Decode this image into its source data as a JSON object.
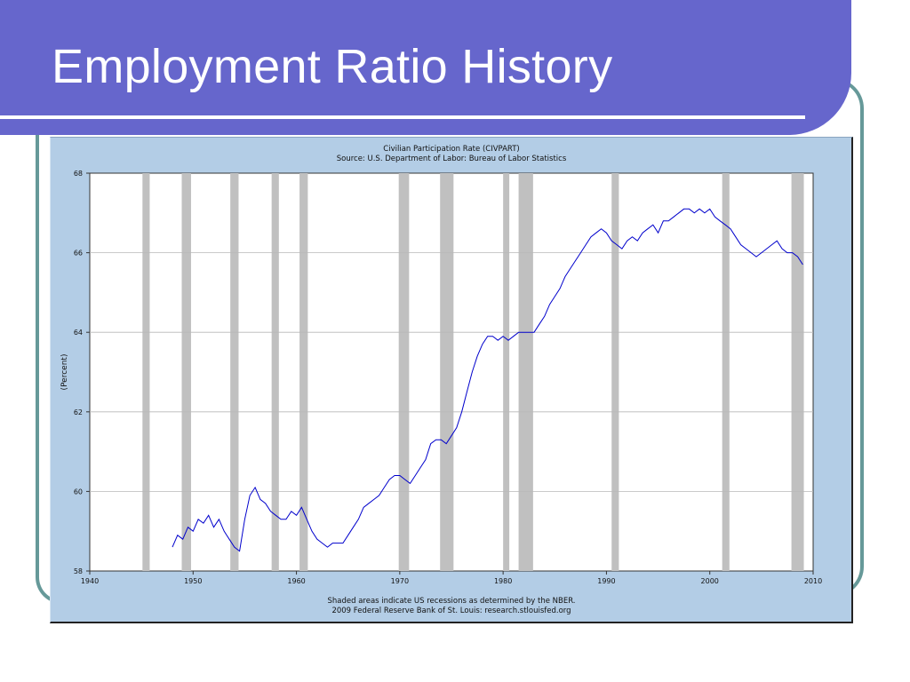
{
  "slide": {
    "title": "Employment Ratio History"
  },
  "chart_data": {
    "type": "line",
    "title": "Civilian Participation Rate (CIVPART)",
    "subtitle": "Source: U.S. Department of Labor: Bureau of Labor Statistics",
    "ylabel": "(Percent)",
    "xlabel": "",
    "xlim": [
      1940,
      2010
    ],
    "ylim": [
      58,
      68
    ],
    "x_ticks": [
      1940,
      1950,
      1960,
      1970,
      1980,
      1990,
      2000,
      2010
    ],
    "y_ticks": [
      58,
      60,
      62,
      64,
      66,
      68
    ],
    "grid": true,
    "line_color": "#0000cc",
    "recession_color": "#c0c0c0",
    "recessions": [
      [
        1945.1,
        1945.8
      ],
      [
        1948.9,
        1949.8
      ],
      [
        1953.6,
        1954.4
      ],
      [
        1957.6,
        1958.3
      ],
      [
        1960.3,
        1961.1
      ],
      [
        1969.9,
        1970.9
      ],
      [
        1973.9,
        1975.2
      ],
      [
        1980.0,
        1980.6
      ],
      [
        1981.5,
        1982.9
      ],
      [
        1990.5,
        1991.2
      ],
      [
        2001.2,
        2001.9
      ],
      [
        2007.9,
        2009.1
      ]
    ],
    "footnote": "Shaded areas indicate US recessions as determined by the NBER.",
    "credit": "2009 Federal Reserve Bank of St. Louis: research.stlouisfed.org",
    "series": [
      {
        "x": [
          1948.0,
          1948.5,
          1949.0,
          1949.5,
          1950.0,
          1950.5,
          1951.0,
          1951.5,
          1952.0,
          1952.5,
          1953.0,
          1953.5,
          1954.0,
          1954.5,
          1955.0,
          1955.5,
          1956.0,
          1956.5,
          1957.0,
          1957.5,
          1958.0,
          1958.5,
          1959.0,
          1959.5,
          1960.0,
          1960.5,
          1961.0,
          1961.5,
          1962.0,
          1962.5,
          1963.0,
          1963.5,
          1964.0,
          1964.5,
          1965.0,
          1965.5,
          1966.0,
          1966.5,
          1967.0,
          1967.5,
          1968.0,
          1968.5,
          1969.0,
          1969.5,
          1970.0,
          1970.5,
          1971.0,
          1971.5,
          1972.0,
          1972.5,
          1973.0,
          1973.5,
          1974.0,
          1974.5,
          1975.0,
          1975.5,
          1976.0,
          1976.5,
          1977.0,
          1977.5,
          1978.0,
          1978.5,
          1979.0,
          1979.5,
          1980.0,
          1980.5,
          1981.0,
          1981.5,
          1982.0,
          1982.5,
          1983.0,
          1983.5,
          1984.0,
          1984.5,
          1985.0,
          1985.5,
          1986.0,
          1986.5,
          1987.0,
          1987.5,
          1988.0,
          1988.5,
          1989.0,
          1989.5,
          1990.0,
          1990.5,
          1991.0,
          1991.5,
          1992.0,
          1992.5,
          1993.0,
          1993.5,
          1994.0,
          1994.5,
          1995.0,
          1995.5,
          1996.0,
          1996.5,
          1997.0,
          1997.5,
          1998.0,
          1998.5,
          1999.0,
          1999.5,
          2000.0,
          2000.5,
          2001.0,
          2001.5,
          2002.0,
          2002.5,
          2003.0,
          2003.5,
          2004.0,
          2004.5,
          2005.0,
          2005.5,
          2006.0,
          2006.5,
          2007.0,
          2007.5,
          2008.0,
          2008.5,
          2009.0
        ],
        "values": [
          58.6,
          58.9,
          58.8,
          59.1,
          59.0,
          59.3,
          59.2,
          59.4,
          59.1,
          59.3,
          59.0,
          58.8,
          58.6,
          58.5,
          59.3,
          59.9,
          60.1,
          59.8,
          59.7,
          59.5,
          59.4,
          59.3,
          59.3,
          59.5,
          59.4,
          59.6,
          59.3,
          59.0,
          58.8,
          58.7,
          58.6,
          58.7,
          58.7,
          58.7,
          58.9,
          59.1,
          59.3,
          59.6,
          59.7,
          59.8,
          59.9,
          60.1,
          60.3,
          60.4,
          60.4,
          60.3,
          60.2,
          60.4,
          60.6,
          60.8,
          61.2,
          61.3,
          61.3,
          61.2,
          61.4,
          61.6,
          62.0,
          62.5,
          63.0,
          63.4,
          63.7,
          63.9,
          63.9,
          63.8,
          63.9,
          63.8,
          63.9,
          64.0,
          64.0,
          64.0,
          64.0,
          64.2,
          64.4,
          64.7,
          64.9,
          65.1,
          65.4,
          65.6,
          65.8,
          66.0,
          66.2,
          66.4,
          66.5,
          66.6,
          66.5,
          66.3,
          66.2,
          66.1,
          66.3,
          66.4,
          66.3,
          66.5,
          66.6,
          66.7,
          66.5,
          66.8,
          66.8,
          66.9,
          67.0,
          67.1,
          67.1,
          67.0,
          67.1,
          67.0,
          67.1,
          66.9,
          66.8,
          66.7,
          66.6,
          66.4,
          66.2,
          66.1,
          66.0,
          65.9,
          66.0,
          66.1,
          66.2,
          66.3,
          66.1,
          66.0,
          66.0,
          65.9,
          65.7
        ]
      }
    ]
  }
}
